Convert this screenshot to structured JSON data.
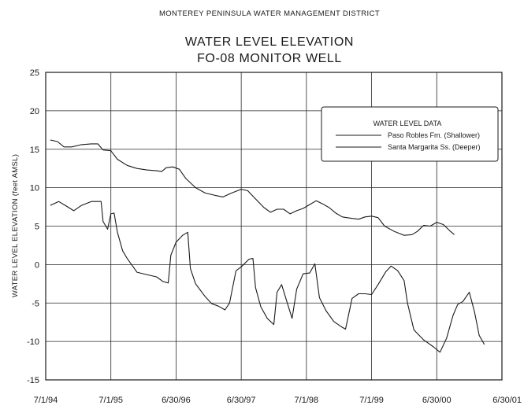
{
  "chart_data": {
    "type": "line",
    "header": "MONTEREY PENINSULA WATER MANAGEMENT DISTRICT",
    "title": "WATER LEVEL ELEVATION",
    "subtitle": "FO-08 MONITOR WELL",
    "xlabel": "",
    "ylabel": "WATER LEVEL ELEVATION (feet AMSL)",
    "ylim": [
      -15,
      25
    ],
    "yticks": [
      25,
      20,
      15,
      10,
      5,
      0,
      -5,
      -10,
      -15
    ],
    "ytick_labels": [
      "25",
      "20",
      "15",
      "10",
      "5",
      "0",
      "-5",
      "-10",
      "-15"
    ],
    "xlim": [
      0,
      7
    ],
    "xticks": [
      0,
      1,
      2,
      3,
      4,
      5,
      6,
      7
    ],
    "xtick_labels": [
      "7/1/94",
      "7/1/95",
      "6/30/96",
      "6/30/97",
      "7/1/98",
      "7/1/99",
      "6/30/00",
      "6/30/01"
    ],
    "x_unit": "years since 7/1/94",
    "grid": true,
    "legend": {
      "title": "WATER LEVEL DATA",
      "placement": "top-right"
    },
    "series": [
      {
        "name": "Paso Robles Fm. (Shallower)",
        "color": "#1a1a1a",
        "points": [
          [
            0.07,
            16.2
          ],
          [
            0.18,
            16.0
          ],
          [
            0.28,
            15.3
          ],
          [
            0.4,
            15.3
          ],
          [
            0.55,
            15.6
          ],
          [
            0.7,
            15.7
          ],
          [
            0.8,
            15.7
          ],
          [
            0.88,
            14.9
          ],
          [
            1.0,
            14.8
          ],
          [
            1.1,
            13.7
          ],
          [
            1.25,
            12.9
          ],
          [
            1.4,
            12.5
          ],
          [
            1.55,
            12.3
          ],
          [
            1.7,
            12.2
          ],
          [
            1.78,
            12.1
          ],
          [
            1.85,
            12.6
          ],
          [
            1.95,
            12.7
          ],
          [
            2.05,
            12.4
          ],
          [
            2.15,
            11.2
          ],
          [
            2.3,
            10.0
          ],
          [
            2.45,
            9.3
          ],
          [
            2.6,
            9.0
          ],
          [
            2.72,
            8.8
          ],
          [
            2.85,
            9.3
          ],
          [
            3.0,
            9.8
          ],
          [
            3.1,
            9.6
          ],
          [
            3.2,
            8.7
          ],
          [
            3.35,
            7.4
          ],
          [
            3.45,
            6.8
          ],
          [
            3.55,
            7.2
          ],
          [
            3.65,
            7.2
          ],
          [
            3.75,
            6.6
          ],
          [
            3.85,
            7.0
          ],
          [
            3.95,
            7.3
          ],
          [
            4.05,
            7.8
          ],
          [
            4.15,
            8.3
          ],
          [
            4.25,
            7.9
          ],
          [
            4.35,
            7.4
          ],
          [
            4.45,
            6.7
          ],
          [
            4.55,
            6.2
          ],
          [
            4.7,
            6.0
          ],
          [
            4.8,
            5.9
          ],
          [
            4.9,
            6.2
          ],
          [
            5.0,
            6.3
          ],
          [
            5.1,
            6.1
          ],
          [
            5.2,
            5.0
          ],
          [
            5.35,
            4.3
          ],
          [
            5.5,
            3.8
          ],
          [
            5.62,
            3.9
          ],
          [
            5.7,
            4.3
          ],
          [
            5.8,
            5.1
          ],
          [
            5.9,
            5.0
          ],
          [
            6.0,
            5.5
          ],
          [
            6.1,
            5.2
          ],
          [
            6.2,
            4.4
          ],
          [
            6.27,
            3.9
          ]
        ]
      },
      {
        "name": "Santa Margarita Ss. (Deeper)",
        "color": "#1a1a1a",
        "points": [
          [
            0.07,
            7.7
          ],
          [
            0.2,
            8.2
          ],
          [
            0.3,
            7.7
          ],
          [
            0.43,
            7.0
          ],
          [
            0.55,
            7.7
          ],
          [
            0.7,
            8.2
          ],
          [
            0.85,
            8.2
          ],
          [
            0.88,
            5.6
          ],
          [
            0.95,
            4.6
          ],
          [
            1.0,
            6.6
          ],
          [
            1.05,
            6.7
          ],
          [
            1.1,
            4.2
          ],
          [
            1.18,
            1.8
          ],
          [
            1.25,
            0.8
          ],
          [
            1.4,
            -1.0
          ],
          [
            1.55,
            -1.3
          ],
          [
            1.7,
            -1.6
          ],
          [
            1.8,
            -2.2
          ],
          [
            1.88,
            -2.4
          ],
          [
            1.92,
            1.2
          ],
          [
            2.0,
            2.9
          ],
          [
            2.1,
            3.8
          ],
          [
            2.18,
            4.2
          ],
          [
            2.22,
            -0.5
          ],
          [
            2.3,
            -2.5
          ],
          [
            2.45,
            -4.2
          ],
          [
            2.55,
            -5.1
          ],
          [
            2.65,
            -5.4
          ],
          [
            2.75,
            -5.9
          ],
          [
            2.82,
            -5.0
          ],
          [
            2.92,
            -0.8
          ],
          [
            3.0,
            -0.3
          ],
          [
            3.12,
            0.7
          ],
          [
            3.18,
            0.8
          ],
          [
            3.22,
            -3.0
          ],
          [
            3.3,
            -5.5
          ],
          [
            3.4,
            -7.0
          ],
          [
            3.5,
            -7.8
          ],
          [
            3.55,
            -3.6
          ],
          [
            3.62,
            -2.6
          ],
          [
            3.7,
            -4.8
          ],
          [
            3.78,
            -7.0
          ],
          [
            3.85,
            -3.2
          ],
          [
            3.95,
            -1.2
          ],
          [
            4.05,
            -1.1
          ],
          [
            4.13,
            0.1
          ],
          [
            4.2,
            -4.3
          ],
          [
            4.3,
            -6.0
          ],
          [
            4.42,
            -7.4
          ],
          [
            4.52,
            -8.0
          ],
          [
            4.6,
            -8.4
          ],
          [
            4.7,
            -4.4
          ],
          [
            4.8,
            -3.8
          ],
          [
            4.9,
            -3.8
          ],
          [
            5.0,
            -3.9
          ],
          [
            5.1,
            -2.6
          ],
          [
            5.22,
            -0.9
          ],
          [
            5.3,
            -0.2
          ],
          [
            5.4,
            -0.8
          ],
          [
            5.5,
            -2.1
          ],
          [
            5.55,
            -5.0
          ],
          [
            5.65,
            -8.5
          ],
          [
            5.8,
            -9.8
          ],
          [
            5.95,
            -10.7
          ],
          [
            6.05,
            -11.4
          ],
          [
            6.15,
            -9.6
          ],
          [
            6.25,
            -6.6
          ],
          [
            6.32,
            -5.2
          ],
          [
            6.4,
            -4.8
          ],
          [
            6.5,
            -3.6
          ],
          [
            6.58,
            -6.2
          ],
          [
            6.65,
            -9.2
          ],
          [
            6.73,
            -10.4
          ]
        ]
      }
    ]
  }
}
